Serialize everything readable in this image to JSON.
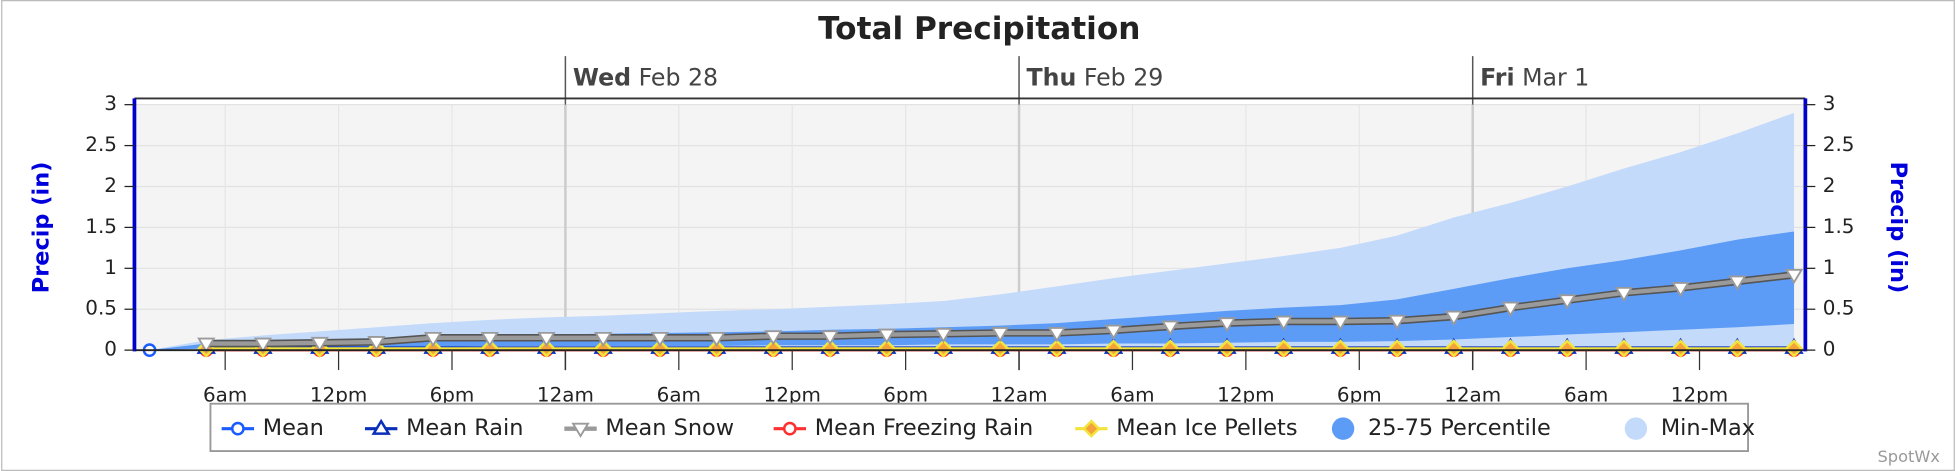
{
  "chart_data": {
    "type": "line",
    "title": "Total Precipitation",
    "ylabel": "Precip (in)",
    "y2label": "Precip (in)",
    "x": [
      2,
      5,
      8,
      11,
      14,
      17,
      20,
      23,
      26,
      29,
      32,
      35,
      38,
      41,
      44,
      47,
      50,
      53,
      56,
      59,
      62,
      65,
      68,
      71,
      74,
      77,
      80,
      83,
      86,
      89
    ],
    "xlim": [
      1.2,
      89.6
    ],
    "xticks": [
      {
        "value": 6,
        "label": "6am"
      },
      {
        "value": 12,
        "label": "12pm"
      },
      {
        "value": 18,
        "label": "6pm"
      },
      {
        "value": 24,
        "label": "12am"
      },
      {
        "value": 30,
        "label": "6am"
      },
      {
        "value": 36,
        "label": "12pm"
      },
      {
        "value": 42,
        "label": "6pm"
      },
      {
        "value": 48,
        "label": "12am"
      },
      {
        "value": 54,
        "label": "6am"
      },
      {
        "value": 60,
        "label": "12pm"
      },
      {
        "value": 66,
        "label": "6pm"
      },
      {
        "value": 72,
        "label": "12am"
      },
      {
        "value": 78,
        "label": "6am"
      },
      {
        "value": 84,
        "label": "12pm"
      }
    ],
    "days": [
      {
        "value": 24,
        "weekday": "Wed",
        "date": "Feb 28"
      },
      {
        "value": 48,
        "weekday": "Thu",
        "date": "Feb 29"
      },
      {
        "value": 72,
        "weekday": "Fri",
        "date": "Mar 1"
      }
    ],
    "ylim": [
      0,
      3
    ],
    "yticks": [
      0,
      0.5,
      1,
      1.5,
      2,
      2.5,
      3
    ],
    "y2lim": [
      0,
      3
    ],
    "y2ticks": [
      0,
      0.5,
      1,
      1.5,
      2,
      2.5,
      3
    ],
    "grid": true,
    "legend": "bottom",
    "bands": [
      {
        "name": "Min-Max",
        "color": "#c4dafb",
        "low": [
          0,
          0,
          0,
          0,
          0,
          0,
          0,
          0,
          0,
          0,
          0,
          0,
          0,
          0,
          0,
          0,
          0,
          0,
          0,
          0,
          0,
          0,
          0,
          0,
          0,
          0,
          0,
          0,
          0,
          0
        ],
        "high": [
          0,
          0.12,
          0.18,
          0.23,
          0.28,
          0.33,
          0.37,
          0.4,
          0.42,
          0.45,
          0.48,
          0.5,
          0.53,
          0.56,
          0.6,
          0.68,
          0.78,
          0.88,
          0.97,
          1.06,
          1.15,
          1.25,
          1.4,
          1.62,
          1.8,
          2.0,
          2.22,
          2.42,
          2.65,
          2.9
        ]
      },
      {
        "name": "25-75 Percentile",
        "color": "#5d9cf6",
        "low": [
          0,
          0.02,
          0.03,
          0.03,
          0.04,
          0.04,
          0.05,
          0.05,
          0.05,
          0.05,
          0.05,
          0.06,
          0.06,
          0.06,
          0.07,
          0.07,
          0.07,
          0.08,
          0.08,
          0.09,
          0.1,
          0.1,
          0.11,
          0.13,
          0.16,
          0.19,
          0.22,
          0.25,
          0.28,
          0.32
        ],
        "high": [
          0,
          0.08,
          0.1,
          0.12,
          0.14,
          0.17,
          0.18,
          0.19,
          0.2,
          0.21,
          0.22,
          0.23,
          0.25,
          0.26,
          0.28,
          0.3,
          0.33,
          0.38,
          0.43,
          0.48,
          0.52,
          0.55,
          0.62,
          0.75,
          0.88,
          1.0,
          1.1,
          1.22,
          1.35,
          1.45
        ]
      }
    ],
    "series": [
      {
        "name": "Mean",
        "color": "#1a5cff",
        "marker": "circle",
        "values": [
          0,
          null,
          null,
          null,
          null,
          null,
          null,
          null,
          null,
          null,
          null,
          null,
          null,
          null,
          null,
          null,
          null,
          null,
          null,
          null,
          null,
          null,
          null,
          null,
          null,
          null,
          null,
          null,
          null,
          null
        ]
      },
      {
        "name": "Mean Rain",
        "color": "#0a2fb8",
        "marker": "triangle",
        "values": [
          null,
          0.03,
          0.03,
          0.03,
          0.03,
          0.03,
          0.03,
          0.03,
          0.03,
          0.03,
          0.03,
          0.03,
          0.03,
          0.03,
          0.03,
          0.03,
          0.03,
          0.03,
          0.03,
          0.03,
          0.03,
          0.03,
          0.03,
          0.03,
          0.03,
          0.03,
          0.03,
          0.03,
          0.03,
          0.03
        ]
      },
      {
        "name": "Mean Snow",
        "color": "#9a9a9a",
        "marker": "triangle-down",
        "values": [
          null,
          0.08,
          0.08,
          0.09,
          0.1,
          0.15,
          0.15,
          0.15,
          0.15,
          0.15,
          0.15,
          0.17,
          0.17,
          0.19,
          0.2,
          0.21,
          0.21,
          0.24,
          0.29,
          0.33,
          0.35,
          0.35,
          0.36,
          0.41,
          0.52,
          0.61,
          0.7,
          0.76,
          0.84,
          0.92
        ]
      },
      {
        "name": "Mean Freezing Rain",
        "color": "#ff3030",
        "marker": "circle",
        "values": [
          null,
          0,
          0,
          0,
          0,
          0,
          0,
          0,
          0,
          0,
          0,
          0,
          0,
          0,
          0,
          0,
          0,
          0,
          0,
          0,
          0,
          0,
          0,
          0,
          0,
          0,
          0,
          0,
          0,
          0
        ]
      },
      {
        "name": "Mean Ice Pellets",
        "color": "#f2e43a",
        "marker": "diamond",
        "values": [
          null,
          0.02,
          0.02,
          0.02,
          0.02,
          0.02,
          0.02,
          0.02,
          0.02,
          0.02,
          0.02,
          0.02,
          0.02,
          0.02,
          0.02,
          0.02,
          0.02,
          0.02,
          0.02,
          0.02,
          0.02,
          0.02,
          0.02,
          0.02,
          0.02,
          0.02,
          0.02,
          0.02,
          0.02,
          0.02
        ]
      }
    ],
    "credit": "SpotWx"
  }
}
